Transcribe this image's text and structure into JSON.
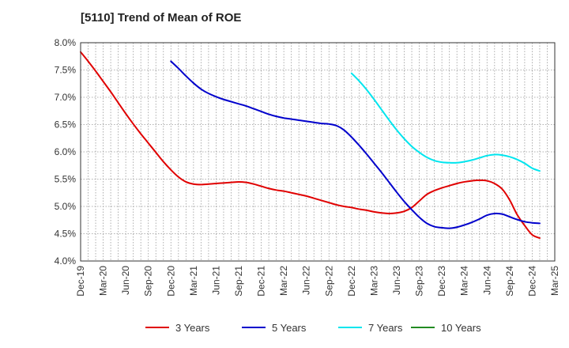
{
  "chart_data": {
    "type": "line",
    "title": "[5110]  Trend of Mean of ROE",
    "xlabel": "",
    "ylabel": "",
    "ylim": [
      4.0,
      8.0
    ],
    "y_ticks": [
      "4.0%",
      "4.5%",
      "5.0%",
      "5.5%",
      "6.0%",
      "6.5%",
      "7.0%",
      "7.5%",
      "8.0%"
    ],
    "x_ticks": [
      "Dec-19",
      "Mar-20",
      "Jun-20",
      "Sep-20",
      "Dec-20",
      "Mar-21",
      "Jun-21",
      "Sep-21",
      "Dec-21",
      "Mar-22",
      "Jun-22",
      "Sep-22",
      "Dec-22",
      "Mar-23",
      "Jun-23",
      "Sep-23",
      "Dec-23",
      "Mar-24",
      "Jun-24",
      "Sep-24",
      "Dec-24",
      "Mar-25"
    ],
    "grid": true,
    "legend_position": "bottom",
    "series": [
      {
        "name": "3 Years",
        "color": "#e00000",
        "points": [
          [
            "Dec-19",
            7.83
          ],
          [
            "Jan-20",
            7.66
          ],
          [
            "Feb-20",
            7.48
          ],
          [
            "Mar-20",
            7.29
          ],
          [
            "Apr-20",
            7.1
          ],
          [
            "May-20",
            6.9
          ],
          [
            "Jun-20",
            6.7
          ],
          [
            "Jul-20",
            6.51
          ],
          [
            "Aug-20",
            6.33
          ],
          [
            "Sep-20",
            6.16
          ],
          [
            "Oct-20",
            5.99
          ],
          [
            "Nov-20",
            5.82
          ],
          [
            "Dec-20",
            5.67
          ],
          [
            "Jan-21",
            5.54
          ],
          [
            "Feb-21",
            5.45
          ],
          [
            "Mar-21",
            5.41
          ],
          [
            "Apr-21",
            5.4
          ],
          [
            "May-21",
            5.41
          ],
          [
            "Jun-21",
            5.42
          ],
          [
            "Jul-21",
            5.43
          ],
          [
            "Aug-21",
            5.44
          ],
          [
            "Sep-21",
            5.45
          ],
          [
            "Oct-21",
            5.44
          ],
          [
            "Nov-21",
            5.41
          ],
          [
            "Dec-21",
            5.37
          ],
          [
            "Jan-22",
            5.33
          ],
          [
            "Feb-22",
            5.3
          ],
          [
            "Mar-22",
            5.28
          ],
          [
            "Apr-22",
            5.25
          ],
          [
            "May-22",
            5.22
          ],
          [
            "Jun-22",
            5.19
          ],
          [
            "Jul-22",
            5.15
          ],
          [
            "Aug-22",
            5.11
          ],
          [
            "Sep-22",
            5.07
          ],
          [
            "Oct-22",
            5.03
          ],
          [
            "Nov-22",
            5.0
          ],
          [
            "Dec-22",
            4.98
          ],
          [
            "Jan-23",
            4.95
          ],
          [
            "Feb-23",
            4.93
          ],
          [
            "Mar-23",
            4.9
          ],
          [
            "Apr-23",
            4.88
          ],
          [
            "May-23",
            4.87
          ],
          [
            "Jun-23",
            4.88
          ],
          [
            "Jul-23",
            4.91
          ],
          [
            "Aug-23",
            4.98
          ],
          [
            "Sep-23",
            5.1
          ],
          [
            "Oct-23",
            5.22
          ],
          [
            "Nov-23",
            5.29
          ],
          [
            "Dec-23",
            5.34
          ],
          [
            "Jan-24",
            5.38
          ],
          [
            "Feb-24",
            5.42
          ],
          [
            "Mar-24",
            5.45
          ],
          [
            "Apr-24",
            5.47
          ],
          [
            "May-24",
            5.48
          ],
          [
            "Jun-24",
            5.47
          ],
          [
            "Jul-24",
            5.42
          ],
          [
            "Aug-24",
            5.32
          ],
          [
            "Sep-24",
            5.12
          ],
          [
            "Oct-24",
            4.85
          ],
          [
            "Nov-24",
            4.65
          ],
          [
            "Dec-24",
            4.48
          ],
          [
            "Jan-25",
            4.42
          ]
        ]
      },
      {
        "name": "5 Years",
        "color": "#0000cc",
        "points": [
          [
            "Dec-20",
            7.66
          ],
          [
            "Jan-21",
            7.53
          ],
          [
            "Feb-21",
            7.39
          ],
          [
            "Mar-21",
            7.26
          ],
          [
            "Apr-21",
            7.15
          ],
          [
            "May-21",
            7.07
          ],
          [
            "Jun-21",
            7.01
          ],
          [
            "Jul-21",
            6.96
          ],
          [
            "Aug-21",
            6.92
          ],
          [
            "Sep-21",
            6.88
          ],
          [
            "Oct-21",
            6.84
          ],
          [
            "Nov-21",
            6.79
          ],
          [
            "Dec-21",
            6.74
          ],
          [
            "Jan-22",
            6.69
          ],
          [
            "Feb-22",
            6.65
          ],
          [
            "Mar-22",
            6.62
          ],
          [
            "Apr-22",
            6.6
          ],
          [
            "May-22",
            6.58
          ],
          [
            "Jun-22",
            6.56
          ],
          [
            "Jul-22",
            6.54
          ],
          [
            "Aug-22",
            6.52
          ],
          [
            "Sep-22",
            6.51
          ],
          [
            "Oct-22",
            6.48
          ],
          [
            "Nov-22",
            6.4
          ],
          [
            "Dec-22",
            6.27
          ],
          [
            "Jan-23",
            6.12
          ],
          [
            "Feb-23",
            5.96
          ],
          [
            "Mar-23",
            5.79
          ],
          [
            "Apr-23",
            5.62
          ],
          [
            "May-23",
            5.44
          ],
          [
            "Jun-23",
            5.26
          ],
          [
            "Jul-23",
            5.09
          ],
          [
            "Aug-23",
            4.94
          ],
          [
            "Sep-23",
            4.8
          ],
          [
            "Oct-23",
            4.69
          ],
          [
            "Nov-23",
            4.63
          ],
          [
            "Dec-23",
            4.61
          ],
          [
            "Jan-24",
            4.6
          ],
          [
            "Feb-24",
            4.62
          ],
          [
            "Mar-24",
            4.66
          ],
          [
            "Apr-24",
            4.71
          ],
          [
            "May-24",
            4.77
          ],
          [
            "Jun-24",
            4.84
          ],
          [
            "Jul-24",
            4.87
          ],
          [
            "Aug-24",
            4.86
          ],
          [
            "Sep-24",
            4.81
          ],
          [
            "Oct-24",
            4.76
          ],
          [
            "Nov-24",
            4.72
          ],
          [
            "Dec-24",
            4.7
          ],
          [
            "Jan-25",
            4.69
          ]
        ]
      },
      {
        "name": "7 Years",
        "color": "#00e5ee",
        "points": [
          [
            "Dec-22",
            7.44
          ],
          [
            "Jan-23",
            7.3
          ],
          [
            "Feb-23",
            7.14
          ],
          [
            "Mar-23",
            6.96
          ],
          [
            "Apr-23",
            6.77
          ],
          [
            "May-23",
            6.58
          ],
          [
            "Jun-23",
            6.4
          ],
          [
            "Jul-23",
            6.24
          ],
          [
            "Aug-23",
            6.1
          ],
          [
            "Sep-23",
            5.99
          ],
          [
            "Oct-23",
            5.9
          ],
          [
            "Nov-23",
            5.84
          ],
          [
            "Dec-23",
            5.81
          ],
          [
            "Jan-24",
            5.8
          ],
          [
            "Feb-24",
            5.8
          ],
          [
            "Mar-24",
            5.82
          ],
          [
            "Apr-24",
            5.85
          ],
          [
            "May-24",
            5.89
          ],
          [
            "Jun-24",
            5.93
          ],
          [
            "Jul-24",
            5.95
          ],
          [
            "Aug-24",
            5.94
          ],
          [
            "Sep-24",
            5.91
          ],
          [
            "Oct-24",
            5.86
          ],
          [
            "Nov-24",
            5.79
          ],
          [
            "Dec-24",
            5.7
          ],
          [
            "Jan-25",
            5.65
          ]
        ]
      },
      {
        "name": "10 Years",
        "color": "#228b22",
        "points": []
      }
    ]
  }
}
